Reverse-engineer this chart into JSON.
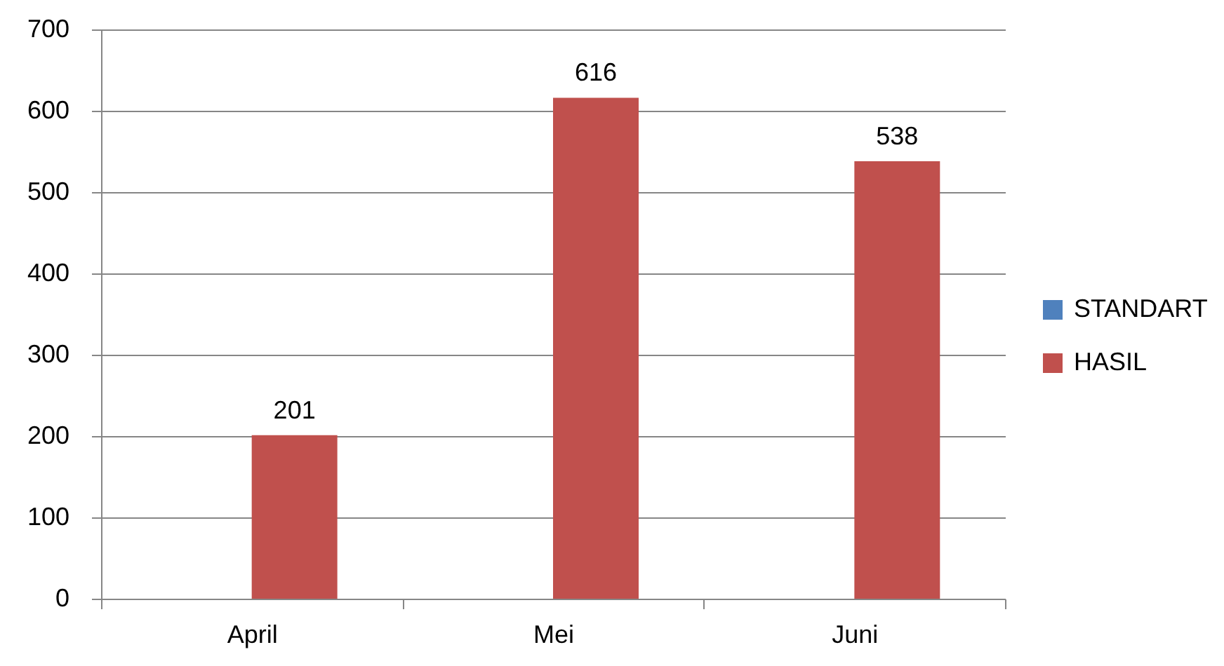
{
  "chart_data": {
    "type": "bar",
    "categories": [
      "April",
      "Mei",
      "Juni"
    ],
    "series": [
      {
        "name": "STANDART",
        "color": "#4f81bd",
        "values": [
          null,
          null,
          null
        ]
      },
      {
        "name": "HASIL",
        "color": "#c0504d",
        "values": [
          201,
          616,
          538
        ]
      }
    ],
    "ylim": [
      0,
      700
    ],
    "yticks": [
      0,
      100,
      200,
      300,
      400,
      500,
      600,
      700
    ],
    "grid": "y",
    "legend": "right",
    "data_labels": true
  }
}
